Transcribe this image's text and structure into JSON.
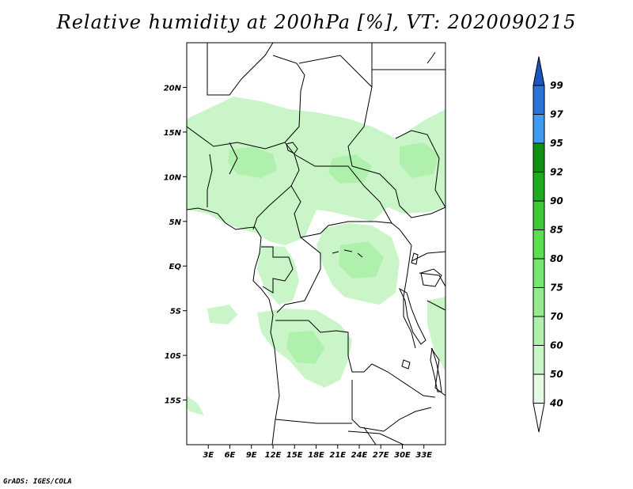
{
  "title": "Relative humidity at 200hPa [%], VT: 2020090215",
  "footer": "GrADS: IGES/COLA",
  "map": {
    "lon_range": [
      0,
      36
    ],
    "lat_range": [
      -20,
      25
    ],
    "lat_ticks": [
      {
        "value": 20,
        "label": "20N"
      },
      {
        "value": 15,
        "label": "15N"
      },
      {
        "value": 10,
        "label": "10N"
      },
      {
        "value": 5,
        "label": "5N"
      },
      {
        "value": 0,
        "label": "EQ"
      },
      {
        "value": -5,
        "label": "5S"
      },
      {
        "value": -10,
        "label": "10S"
      },
      {
        "value": -15,
        "label": "15S"
      }
    ],
    "lon_ticks": [
      {
        "value": 3,
        "label": "3E"
      },
      {
        "value": 6,
        "label": "6E"
      },
      {
        "value": 9,
        "label": "9E"
      },
      {
        "value": 12,
        "label": "12E"
      },
      {
        "value": 15,
        "label": "15E"
      },
      {
        "value": 18,
        "label": "18E"
      },
      {
        "value": 21,
        "label": "21E"
      },
      {
        "value": 24,
        "label": "24E"
      },
      {
        "value": 27,
        "label": "27E"
      },
      {
        "value": 30,
        "label": "30E"
      },
      {
        "value": 33,
        "label": "33E"
      }
    ]
  },
  "colorbar": {
    "levels": [
      "40",
      "50",
      "60",
      "70",
      "75",
      "80",
      "85",
      "90",
      "92",
      "95",
      "97",
      "99"
    ],
    "colors": [
      "#ffffff",
      "#e6fbe6",
      "#c9f5c8",
      "#b0f0ad",
      "#95eb90",
      "#77e670",
      "#5bde52",
      "#3cc837",
      "#1fab1f",
      "#109010",
      "#3f9bf0",
      "#2b73d6",
      "#1a55c0"
    ]
  },
  "colors": {
    "light_green": "#c9f5c8",
    "mid_green": "#b0f0ad",
    "border": "#000000"
  }
}
